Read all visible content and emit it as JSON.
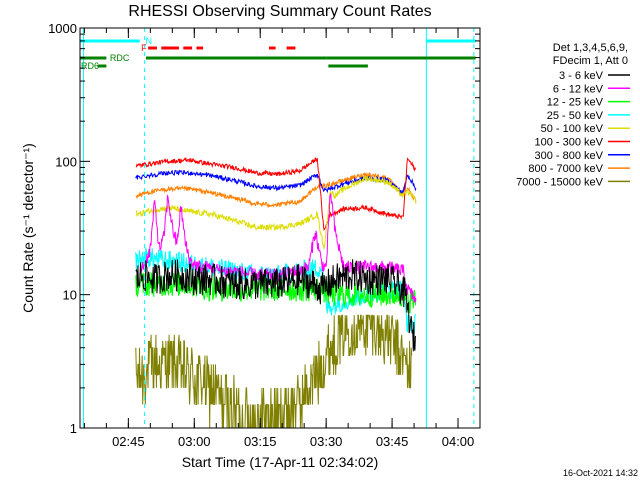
{
  "chart_data": {
    "type": "line",
    "title": "RHESSI Observing Summary Count Rates",
    "xlabel": "Start Time (17-Apr-11 02:34:02)",
    "ylabel": "Count Rate (s⁻¹ detector⁻¹)",
    "yscale": "log",
    "ylim": [
      1,
      1000
    ],
    "xlim_minutes": [
      0,
      91
    ],
    "x_ticks": [
      {
        "t": 11,
        "label": "02:45"
      },
      {
        "t": 26,
        "label": "03:00"
      },
      {
        "t": 41,
        "label": "03:15"
      },
      {
        "t": 56,
        "label": "03:30"
      },
      {
        "t": 71,
        "label": "03:45"
      },
      {
        "t": 86,
        "label": "04:00"
      }
    ],
    "y_ticks": [
      {
        "v": 1,
        "label": "1"
      },
      {
        "v": 10,
        "label": "10"
      },
      {
        "v": 100,
        "label": "100"
      },
      {
        "v": 1000,
        "label": "1000"
      }
    ],
    "legend": {
      "header": [
        "Det 1,3,4,5,6,9,",
        "FDecim 1, Att 0"
      ],
      "position": "right"
    },
    "series": [
      {
        "name": "3 - 6 keV",
        "color": "#000000",
        "x": [
          12.7,
          14,
          17,
          20,
          23,
          26,
          30,
          35,
          40,
          45,
          50,
          53,
          55,
          58,
          62,
          66,
          70,
          72,
          74,
          75.5,
          76.5
        ],
        "y": [
          13,
          14,
          13,
          14,
          14,
          13,
          13,
          12,
          12,
          12,
          13,
          12,
          11,
          13,
          14,
          13,
          13,
          12,
          10,
          5,
          4.5
        ]
      },
      {
        "name": "6 - 12 keV",
        "color": "#ff00ff",
        "x": [
          14,
          15,
          16,
          17,
          18,
          19,
          20,
          21,
          22,
          23,
          24,
          25,
          26,
          27,
          28,
          29,
          30,
          32,
          35,
          40,
          45,
          49,
          52,
          53.5,
          55,
          56,
          57,
          58,
          60,
          65,
          70,
          73.5,
          74.5,
          76.5
        ],
        "y": [
          16,
          18,
          22,
          50,
          22,
          26,
          55,
          32,
          24,
          45,
          24,
          18,
          17,
          16,
          16,
          16,
          16,
          15,
          15,
          14,
          14,
          15,
          16,
          30,
          17,
          16,
          60,
          30,
          16,
          16,
          16,
          15,
          11,
          9
        ]
      },
      {
        "name": "12 - 25 keV",
        "color": "#00ff00",
        "x": [
          12.7,
          15,
          20,
          25,
          30,
          35,
          40,
          45,
          50,
          55,
          57,
          60,
          65,
          70,
          73.5,
          75,
          76.5
        ],
        "y": [
          12,
          12,
          12,
          12,
          11,
          11,
          11,
          11,
          11,
          11,
          10,
          10,
          10,
          10,
          10,
          9,
          9
        ]
      },
      {
        "name": "25 - 50 keV",
        "color": "#00ffff",
        "x": [
          12.7,
          15,
          20,
          25,
          30,
          35,
          40,
          45,
          50,
          55,
          56,
          60,
          65,
          70,
          73.5,
          74.5,
          76.5
        ],
        "y": [
          18,
          19,
          18,
          17,
          16,
          15,
          14,
          14,
          15,
          16,
          8,
          9,
          10,
          11,
          11,
          6,
          6
        ]
      },
      {
        "name": "50 - 100 keV",
        "color": "#dddd00",
        "x": [
          12.7,
          13.5,
          15,
          20,
          25,
          30,
          35,
          40,
          45,
          50,
          54,
          55.5,
          57,
          58,
          60,
          65,
          70,
          73.5,
          74.5,
          76.5
        ],
        "y": [
          42,
          40,
          42,
          45,
          42,
          40,
          36,
          32,
          32,
          34,
          40,
          22,
          60,
          55,
          62,
          75,
          70,
          55,
          60,
          50
        ]
      },
      {
        "name": "100 - 300 keV",
        "color": "#ff0000",
        "x": [
          12.7,
          15,
          20,
          25,
          30,
          35,
          40,
          45,
          50,
          54,
          55.5,
          57,
          60,
          65,
          70,
          73.5,
          74.5,
          76.5
        ],
        "y": [
          92,
          95,
          100,
          102,
          95,
          90,
          82,
          80,
          85,
          105,
          30,
          40,
          44,
          45,
          40,
          38,
          105,
          85
        ]
      },
      {
        "name": "300 - 800 keV",
        "color": "#0000ff",
        "x": [
          12.7,
          15,
          20,
          25,
          30,
          35,
          40,
          45,
          50,
          54,
          55.5,
          60,
          65,
          70,
          73.5,
          74.5,
          76.5
        ],
        "y": [
          75,
          78,
          82,
          82,
          78,
          72,
          65,
          63,
          66,
          80,
          60,
          68,
          75,
          72,
          58,
          80,
          62
        ]
      },
      {
        "name": "800 - 7000 keV",
        "color": "#ff8000",
        "x": [
          12.7,
          15,
          20,
          25,
          30,
          35,
          40,
          45,
          50,
          54,
          55.5,
          60,
          65,
          70,
          73.5,
          74.5,
          76.5
        ],
        "y": [
          55,
          58,
          62,
          62,
          58,
          53,
          48,
          47,
          50,
          65,
          65,
          72,
          80,
          75,
          55,
          63,
          50
        ]
      },
      {
        "name": "7000 - 15000 keV",
        "color": "#808000",
        "x": [
          12.7,
          14,
          17,
          21,
          25,
          30,
          35,
          40,
          45,
          50,
          54,
          56,
          58,
          60,
          63,
          66,
          68,
          70,
          72,
          74,
          75.5
        ],
        "y": [
          2.5,
          2.5,
          3,
          3,
          2.5,
          2,
          1.3,
          1.2,
          1.2,
          1.5,
          2.5,
          3.5,
          4.5,
          5.5,
          6,
          6,
          5.5,
          5,
          4,
          3,
          2.5
        ]
      }
    ],
    "annotations": {
      "vertical_lines": [
        {
          "t": 0.8,
          "style": "solid",
          "color": "#00ffff"
        },
        {
          "t": 14.7,
          "style": "dashed",
          "color": "#00ffff"
        },
        {
          "t": 78.8,
          "style": "solid",
          "color": "#00ffff"
        },
        {
          "t": 89.6,
          "style": "dashed",
          "color": "#00ffff"
        }
      ],
      "state_bars": [
        {
          "label": "N",
          "color": "#00ffff",
          "level": 1,
          "segments": [
            [
              0,
              13.6
            ],
            [
              78.8,
              90
            ]
          ]
        },
        {
          "label": "F",
          "color": "#ff0000",
          "level": 2,
          "segments": [
            [
              15.5,
              17.5
            ],
            [
              18.5,
              22.5
            ],
            [
              23.5,
              25.5
            ],
            [
              26.5,
              28
            ],
            [
              43,
              44.5
            ],
            [
              47,
              49
            ]
          ]
        },
        {
          "label": "RDC",
          "color": "#008000",
          "level": 3,
          "segments": [
            [
              0,
              6
            ],
            [
              15,
              56
            ],
            [
              56,
              90
            ]
          ]
        },
        {
          "label": "RD6",
          "color": "#008000",
          "level": 4,
          "segments": [
            [
              4,
              6
            ],
            [
              56.5,
              65.5
            ]
          ]
        }
      ]
    }
  },
  "footer": {
    "timestamp": "16-Oct-2021 14:32"
  }
}
